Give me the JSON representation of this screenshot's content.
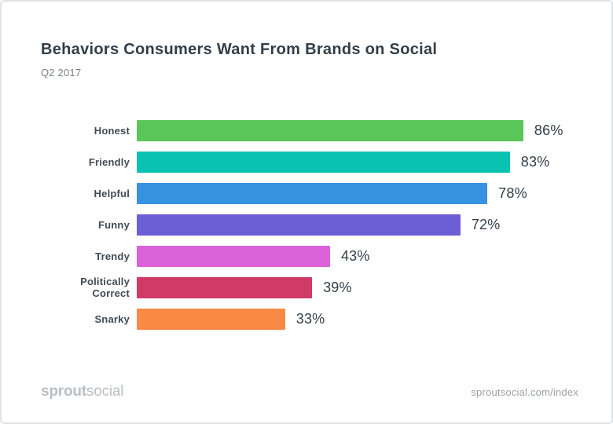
{
  "header": {
    "title": "Behaviors Consumers Want From Brands on Social",
    "subtitle": "Q2 2017"
  },
  "chart_data": {
    "type": "bar",
    "orientation": "horizontal",
    "title": "Behaviors Consumers Want From Brands on Social",
    "subtitle": "Q2 2017",
    "categories": [
      "Honest",
      "Friendly",
      "Helpful",
      "Funny",
      "Trendy",
      "Politically Correct",
      "Snarky"
    ],
    "values": [
      86,
      83,
      78,
      72,
      43,
      39,
      33
    ],
    "value_suffix": "%",
    "bar_colors": [
      "#5AC558",
      "#0AC2B1",
      "#3793E0",
      "#6C5FD5",
      "#DB62D9",
      "#D03A66",
      "#F98A45"
    ],
    "xlim": [
      0,
      100
    ],
    "grid": false,
    "legend": false,
    "value_label_position": "outside-end",
    "category_label_position": "left"
  },
  "footer": {
    "logo_bold": "sprout",
    "logo_light": "social",
    "link": "sproutsocial.com/index"
  },
  "theme": {
    "title_color": "#323e48",
    "subtitle_color": "#7a8288",
    "category_label_color": "#414b53",
    "value_label_color": "#323e48",
    "footer_logo_color": "#b9bfc4",
    "footer_link_color": "#9ba2a8",
    "card_border_color": "#dfe3e6",
    "card_background": "#ffffff"
  }
}
